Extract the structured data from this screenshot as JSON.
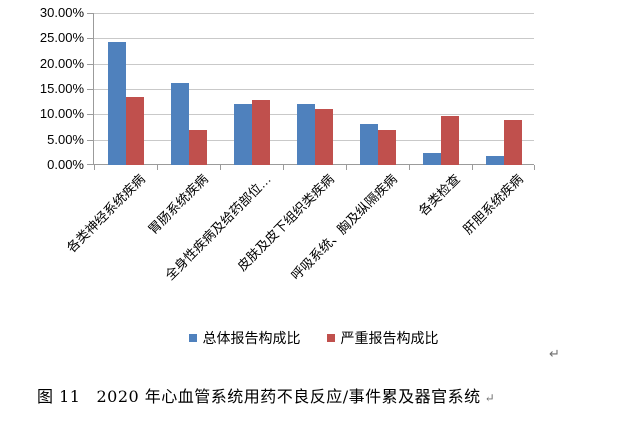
{
  "chart_data": {
    "type": "bar",
    "title": "",
    "categories": [
      "各类神经系统疾病",
      "胃肠系统疾病",
      "全身性疾病及给药部位…",
      "皮肤及皮下组织类疾病",
      "呼吸系统、胸及纵隔疾病",
      "各类检查",
      "肝胆系统疾病"
    ],
    "series": [
      {
        "name": "总体报告构成比",
        "color": "#4F81BD",
        "values": [
          24.2,
          16.2,
          12.1,
          12.0,
          8.1,
          2.3,
          1.7
        ]
      },
      {
        "name": "严重报告构成比",
        "color": "#C0504D",
        "values": [
          13.4,
          7.0,
          12.9,
          11.1,
          7.0,
          9.6,
          8.8
        ]
      }
    ],
    "value_unit": "%",
    "ylim": [
      0,
      30
    ],
    "ytick_step": 5,
    "ytick_labels": [
      "0.00%",
      "5.00%",
      "10.00%",
      "15.00%",
      "20.00%",
      "25.00%",
      "30.00%"
    ],
    "grid": "horizontal",
    "legend_position": "bottom",
    "x_label_rotation_deg": 45
  },
  "caption": {
    "label": "图 11",
    "text": "2020 年心血管系统用药不良反应/事件累及器官系统"
  },
  "marks": {
    "paragraph_return": "↵"
  },
  "colors": {
    "series_total": "#4F81BD",
    "series_serious": "#C0504D",
    "gridline": "#C9C9C9",
    "axis": "#9B9B9B",
    "text": "#000000",
    "return_mark": "#6E6E6E"
  }
}
